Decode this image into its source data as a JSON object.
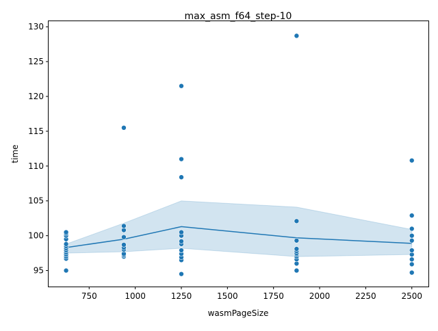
{
  "chart_data": {
    "type": "line",
    "title": "max_asm_f64_step-10",
    "xlabel": "wasmPageSize",
    "ylabel": "time",
    "xlim": [
      530,
      2590
    ],
    "ylim": [
      92.7,
      130.8
    ],
    "x_ticks": [
      750,
      1000,
      1250,
      1500,
      1750,
      2000,
      2250,
      2500
    ],
    "x_tick_labels": [
      "750",
      "1000",
      "1250",
      "1500",
      "1750",
      "2000",
      "2250",
      "2500"
    ],
    "y_ticks": [
      95,
      100,
      105,
      110,
      115,
      120,
      125,
      130
    ],
    "y_tick_labels": [
      "95",
      "100",
      "105",
      "110",
      "115",
      "120",
      "125",
      "130"
    ],
    "grid": false,
    "colors": {
      "line": "#1f77b4",
      "points": "#1f77b4",
      "band": "#1f77b4",
      "axes": "#000000"
    },
    "mean_line": {
      "x": [
        625,
        938,
        1250,
        1875,
        2500
      ],
      "y": [
        98.3,
        99.5,
        101.3,
        99.7,
        98.9
      ]
    },
    "confidence_band": {
      "x": [
        625,
        938,
        1250,
        1875,
        2500
      ],
      "lower": [
        97.5,
        97.7,
        98.2,
        97.0,
        97.3
      ],
      "upper": [
        98.8,
        101.8,
        105.0,
        104.1,
        100.9
      ]
    },
    "scatter": [
      {
        "x": 625,
        "values": [
          95.0,
          96.7,
          97.0,
          97.3,
          97.6,
          97.9,
          98.2,
          98.5,
          98.8,
          99.5,
          100.0,
          100.3,
          100.5
        ]
      },
      {
        "x": 938,
        "values": [
          97.0,
          97.2,
          97.4,
          98.0,
          98.3,
          98.7,
          99.8,
          100.8,
          101.4,
          115.5
        ]
      },
      {
        "x": 1250,
        "values": [
          94.5,
          96.5,
          96.9,
          97.4,
          97.9,
          98.8,
          99.2,
          100.0,
          100.5,
          108.4,
          111.0,
          121.5
        ]
      },
      {
        "x": 1875,
        "values": [
          95.0,
          96.0,
          96.6,
          97.0,
          97.3,
          97.5,
          97.8,
          98.1,
          99.3,
          102.1,
          128.7
        ]
      },
      {
        "x": 2500,
        "values": [
          94.7,
          95.9,
          96.6,
          97.3,
          97.9,
          99.3,
          100.0,
          101.0,
          102.9,
          110.8
        ]
      }
    ]
  }
}
